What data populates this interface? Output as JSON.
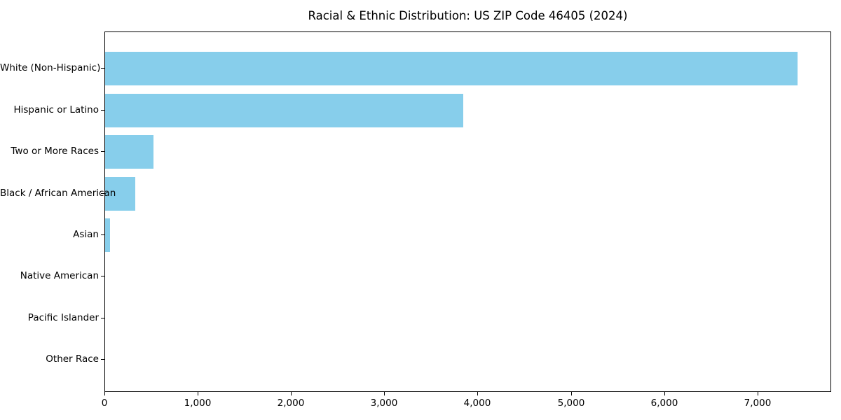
{
  "title": "Racial & Ethnic Distribution: US ZIP Code 46405 (2024)",
  "chart_data": {
    "type": "bar",
    "orientation": "horizontal",
    "title": "Racial & Ethnic Distribution: US ZIP Code 46405 (2024)",
    "categories": [
      "White (Non-Hispanic)",
      "Hispanic or Latino",
      "Two or More Races",
      "Black / African American",
      "Asian",
      "Native American",
      "Pacific Islander",
      "Other Race"
    ],
    "values": [
      7420,
      3840,
      515,
      320,
      55,
      0,
      0,
      0
    ],
    "xlabel": "",
    "ylabel": "",
    "xlim": [
      0,
      7790
    ],
    "x_ticks": [
      0,
      1000,
      2000,
      3000,
      4000,
      5000,
      6000,
      7000
    ],
    "x_tick_labels": [
      "0",
      "1,000",
      "2,000",
      "3,000",
      "4,000",
      "5,000",
      "6,000",
      "7,000"
    ],
    "bar_color": "#87CEEB",
    "frame_color": "#000000",
    "text_color": "#000000",
    "background_color": "#ffffff",
    "grid": false,
    "legend": null
  }
}
